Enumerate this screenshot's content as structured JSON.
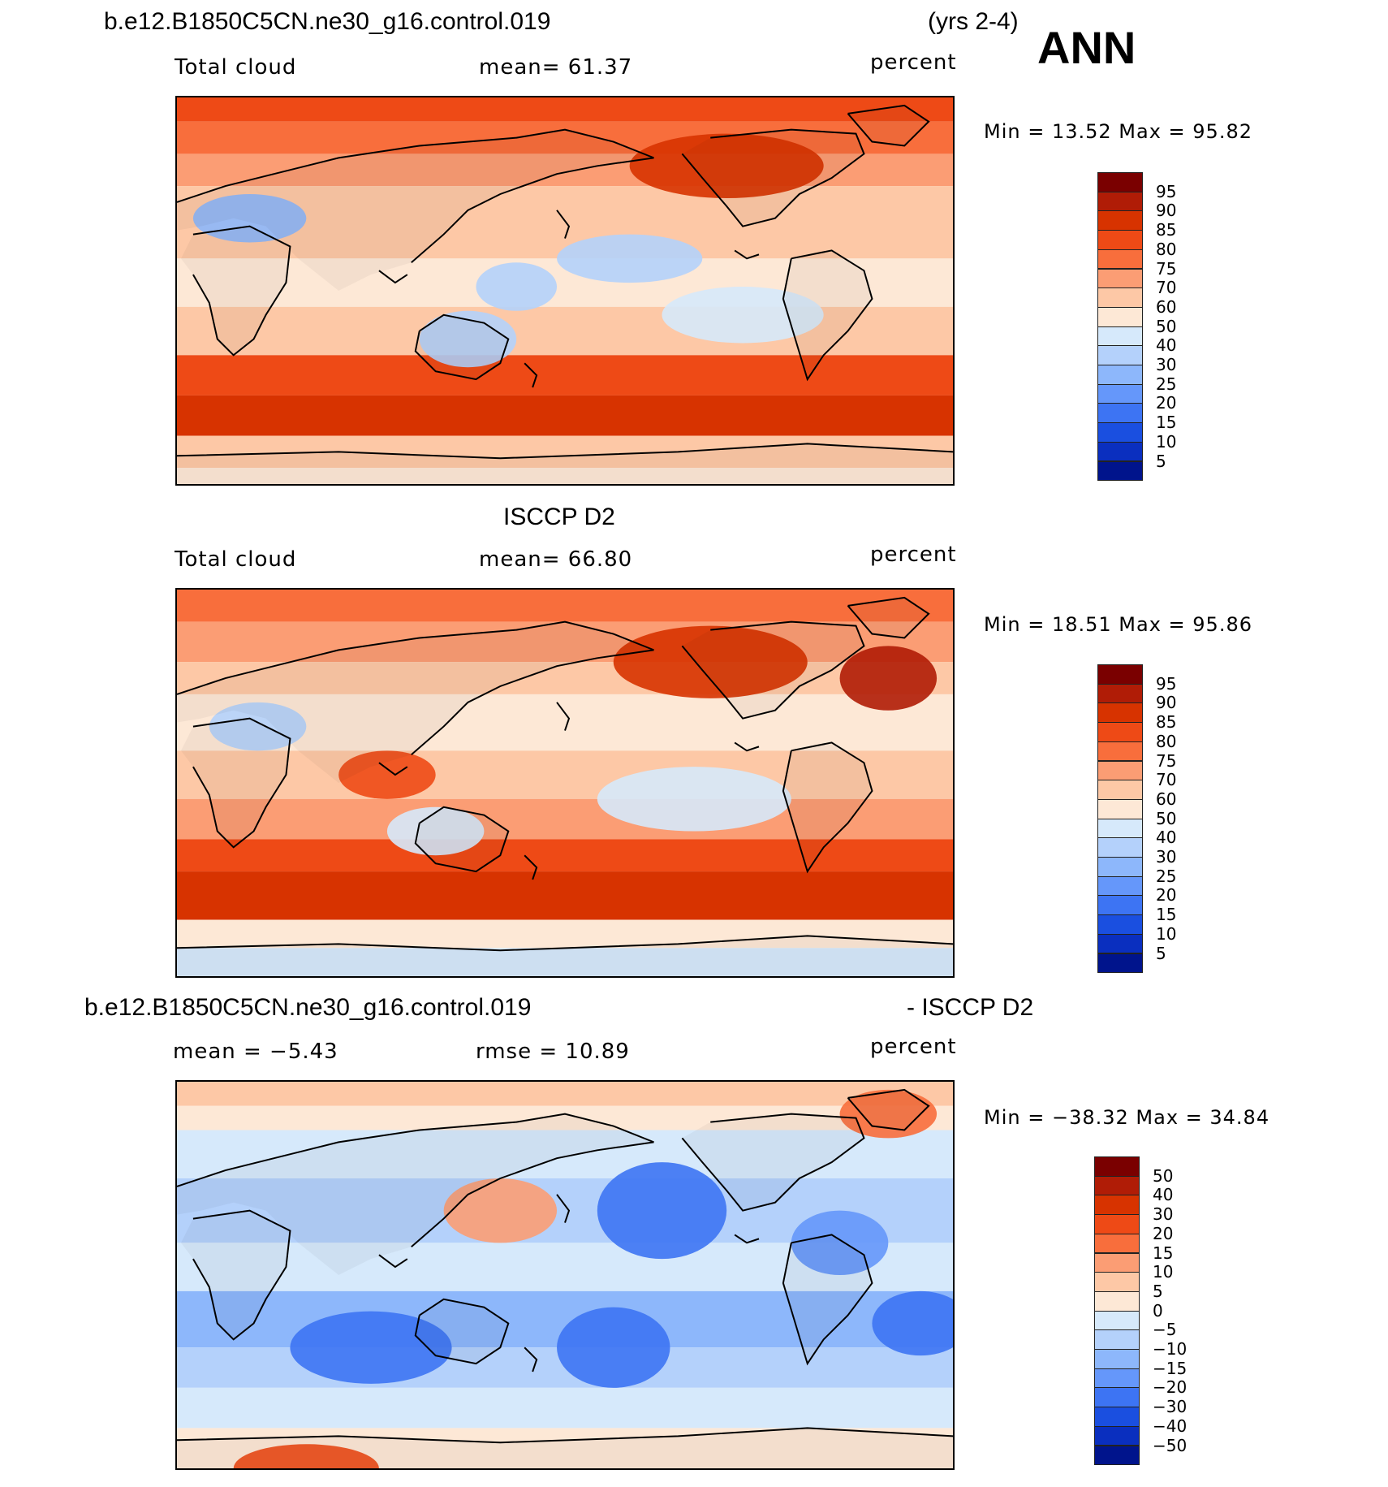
{
  "header": {
    "case_title": "b.e12.B1850C5CN.ne30_g16.control.019",
    "years": "(yrs 2-4)",
    "season": "ANN"
  },
  "panels": [
    {
      "id": "model",
      "title": "",
      "left_label": "Total cloud",
      "center_label": "mean=   61.37",
      "units": "percent",
      "minmax": "Min =   13.52  Max =   95.82",
      "colorbar": {
        "labels": [
          "95",
          "90",
          "85",
          "80",
          "75",
          "70",
          "60",
          "50",
          "40",
          "30",
          "25",
          "20",
          "15",
          "10",
          "5"
        ],
        "colors": [
          "#7a0000",
          "#b01c06",
          "#d73300",
          "#ee4a16",
          "#f86e3c",
          "#fb9d74",
          "#fdc8a6",
          "#fde8d6",
          "#d6e9fb",
          "#b4d1fb",
          "#8db7fb",
          "#6597fa",
          "#3d74f3",
          "#1a4fe0",
          "#0a2fbf",
          "#00148c"
        ]
      },
      "features": "model"
    },
    {
      "id": "obs",
      "title": "ISCCP D2",
      "left_label": "Total cloud",
      "center_label": "mean=   66.80",
      "units": "percent",
      "minmax": "Min =   18.51  Max =   95.86",
      "colorbar": {
        "labels": [
          "95",
          "90",
          "85",
          "80",
          "75",
          "70",
          "60",
          "50",
          "40",
          "30",
          "25",
          "20",
          "15",
          "10",
          "5"
        ],
        "colors": [
          "#7a0000",
          "#b01c06",
          "#d73300",
          "#ee4a16",
          "#f86e3c",
          "#fb9d74",
          "#fdc8a6",
          "#fde8d6",
          "#d6e9fb",
          "#b4d1fb",
          "#8db7fb",
          "#6597fa",
          "#3d74f3",
          "#1a4fe0",
          "#0a2fbf",
          "#00148c"
        ]
      },
      "features": "obs"
    },
    {
      "id": "diff",
      "title_left": "b.e12.B1850C5CN.ne30_g16.control.019",
      "title_right": "- ISCCP D2",
      "left_label": "mean =   −5.43",
      "center_label": "rmse =   10.89",
      "units": "percent",
      "minmax": "Min = −38.32  Max =   34.84",
      "colorbar": {
        "labels": [
          "50",
          "40",
          "30",
          "20",
          "15",
          "10",
          "5",
          "0",
          "−5",
          "−10",
          "−15",
          "−20",
          "−30",
          "−40",
          "−50"
        ],
        "colors": [
          "#7a0000",
          "#b01c06",
          "#d73300",
          "#ee4a16",
          "#f86e3c",
          "#fb9d74",
          "#fdc8a6",
          "#fde8d6",
          "#d6e9fb",
          "#b4d1fb",
          "#8db7fb",
          "#6597fa",
          "#3d74f3",
          "#1a4fe0",
          "#0a2fbf",
          "#00148c"
        ]
      },
      "features": "diff"
    }
  ]
}
